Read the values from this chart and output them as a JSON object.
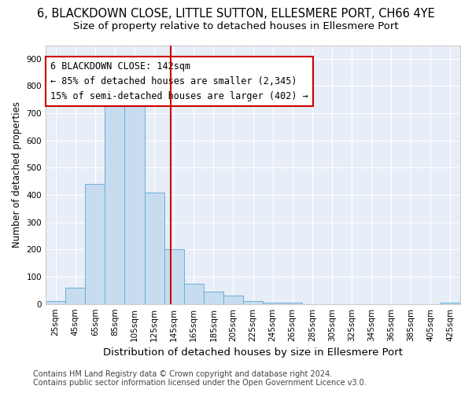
{
  "title": "6, BLACKDOWN CLOSE, LITTLE SUTTON, ELLESMERE PORT, CH66 4YE",
  "subtitle": "Size of property relative to detached houses in Ellesmere Port",
  "xlabel": "Distribution of detached houses by size in Ellesmere Port",
  "ylabel": "Number of detached properties",
  "bar_heights": [
    10,
    60,
    440,
    755,
    755,
    410,
    200,
    75,
    45,
    30,
    10,
    5,
    5,
    0,
    0,
    0,
    0,
    0,
    0,
    0,
    5
  ],
  "bin_edges": [
    15,
    35,
    55,
    75,
    95,
    115,
    135,
    155,
    175,
    195,
    215,
    235,
    255,
    275,
    295,
    315,
    335,
    355,
    375,
    395,
    415,
    435
  ],
  "bar_facecolor": "#c8dcf0",
  "bar_edgecolor": "#6aaed6",
  "tick_labels": [
    "25sqm",
    "45sqm",
    "65sqm",
    "85sqm",
    "105sqm",
    "125sqm",
    "145sqm",
    "165sqm",
    "185sqm",
    "205sqm",
    "225sqm",
    "245sqm",
    "265sqm",
    "285sqm",
    "305sqm",
    "325sqm",
    "345sqm",
    "365sqm",
    "385sqm",
    "405sqm",
    "425sqm"
  ],
  "tick_positions": [
    25,
    45,
    65,
    85,
    105,
    125,
    145,
    165,
    185,
    205,
    225,
    245,
    265,
    285,
    305,
    325,
    345,
    365,
    385,
    405,
    425
  ],
  "vline_x": 142,
  "vline_color": "#cc0000",
  "ylim": [
    0,
    950
  ],
  "yticks": [
    0,
    100,
    200,
    300,
    400,
    500,
    600,
    700,
    800,
    900
  ],
  "annotation_title": "6 BLACKDOWN CLOSE: 142sqm",
  "annotation_line1": "← 85% of detached houses are smaller (2,345)",
  "annotation_line2": "15% of semi-detached houses are larger (402) →",
  "fig_bg_color": "#ffffff",
  "plot_bg_color": "#e8eef8",
  "grid_color": "#ffffff",
  "footer_line1": "Contains HM Land Registry data © Crown copyright and database right 2024.",
  "footer_line2": "Contains public sector information licensed under the Open Government Licence v3.0.",
  "title_fontsize": 10.5,
  "subtitle_fontsize": 9.5,
  "xlabel_fontsize": 9.5,
  "ylabel_fontsize": 8.5,
  "tick_fontsize": 7.5,
  "annotation_fontsize": 8.5,
  "footer_fontsize": 7
}
